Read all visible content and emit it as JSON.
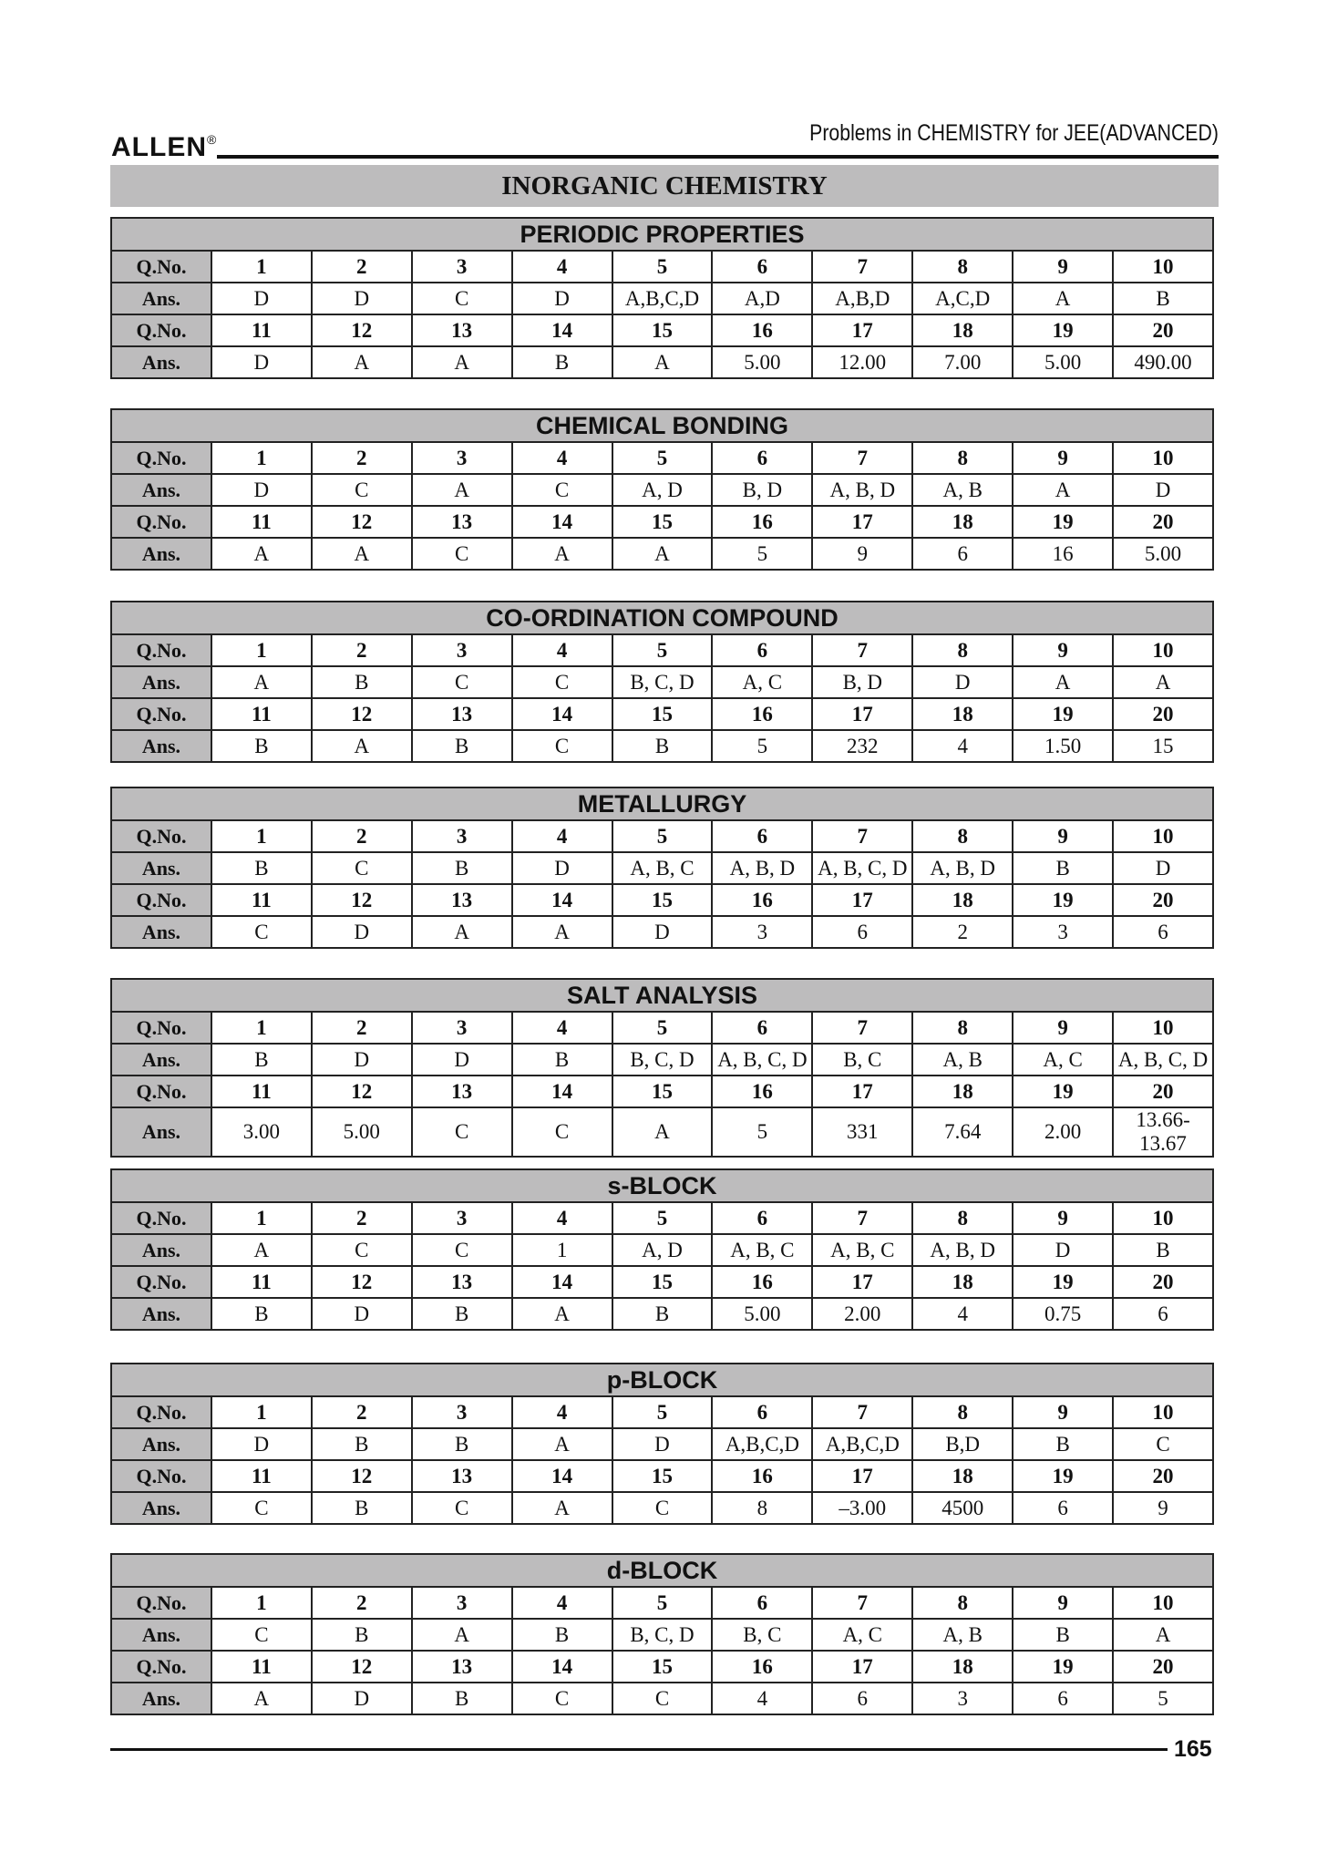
{
  "header": {
    "logo": "ALLEN",
    "registered": "®",
    "book_title": "Problems in CHEMISTRY for JEE(ADVANCED)"
  },
  "subject": "INORGANIC CHEMISTRY",
  "labels": {
    "qno": "Q.No.",
    "ans": "Ans."
  },
  "sections": [
    {
      "title": "PERIODIC PROPERTIES",
      "answers": [
        "D",
        "D",
        "C",
        "D",
        "A,B,C,D",
        "A,D",
        "A,B,D",
        "A,C,D",
        "A",
        "B",
        "D",
        "A",
        "A",
        "B",
        "A",
        "5.00",
        "12.00",
        "7.00",
        "5.00",
        "490.00"
      ]
    },
    {
      "title": "CHEMICAL BONDING",
      "answers": [
        "D",
        "C",
        "A",
        "C",
        "A, D",
        "B, D",
        "A, B, D",
        "A, B",
        "A",
        "D",
        "A",
        "A",
        "C",
        "A",
        "A",
        "5",
        "9",
        "6",
        "16",
        "5.00"
      ]
    },
    {
      "title": "CO-ORDINATION COMPOUND",
      "answers": [
        "A",
        "B",
        "C",
        "C",
        "B, C, D",
        "A, C",
        "B, D",
        "D",
        "A",
        "A",
        "B",
        "A",
        "B",
        "C",
        "B",
        "5",
        "232",
        "4",
        "1.50",
        "15"
      ]
    },
    {
      "title": "METALLURGY",
      "answers": [
        "B",
        "C",
        "B",
        "D",
        "A, B, C",
        "A, B, D",
        "A, B, C, D",
        "A, B, D",
        "B",
        "D",
        "C",
        "D",
        "A",
        "A",
        "D",
        "3",
        "6",
        "2",
        "3",
        "6"
      ]
    },
    {
      "title": "SALT ANALYSIS",
      "answers": [
        "B",
        "D",
        "D",
        "B",
        "B, C, D",
        "A, B, C, D",
        "B, C",
        "A, B",
        "A, C",
        "A, B, C, D",
        "3.00",
        "5.00",
        "C",
        "C",
        "A",
        "5",
        "331",
        "7.64",
        "2.00",
        "13.66-13.67"
      ]
    },
    {
      "title": "s-BLOCK",
      "answers": [
        "A",
        "C",
        "C",
        "1",
        "A, D",
        "A, B, C",
        "A, B, C",
        "A, B, D",
        "D",
        "B",
        "B",
        "D",
        "B",
        "A",
        "B",
        "5.00",
        "2.00",
        "4",
        "0.75",
        "6"
      ]
    },
    {
      "title": "p-BLOCK",
      "answers": [
        "D",
        "B",
        "B",
        "A",
        "D",
        "A,B,C,D",
        "A,B,C,D",
        "B,D",
        "B",
        "C",
        "C",
        "B",
        "C",
        "A",
        "C",
        "8",
        "–3.00",
        "4500",
        "6",
        "9"
      ]
    },
    {
      "title": "d-BLOCK",
      "answers": [
        "C",
        "B",
        "A",
        "B",
        "B, C, D",
        "B, C",
        "A, C",
        "A, B",
        "B",
        "A",
        "A",
        "D",
        "B",
        "C",
        "C",
        "4",
        "6",
        "3",
        "6",
        "5"
      ]
    }
  ],
  "page_number": "165"
}
